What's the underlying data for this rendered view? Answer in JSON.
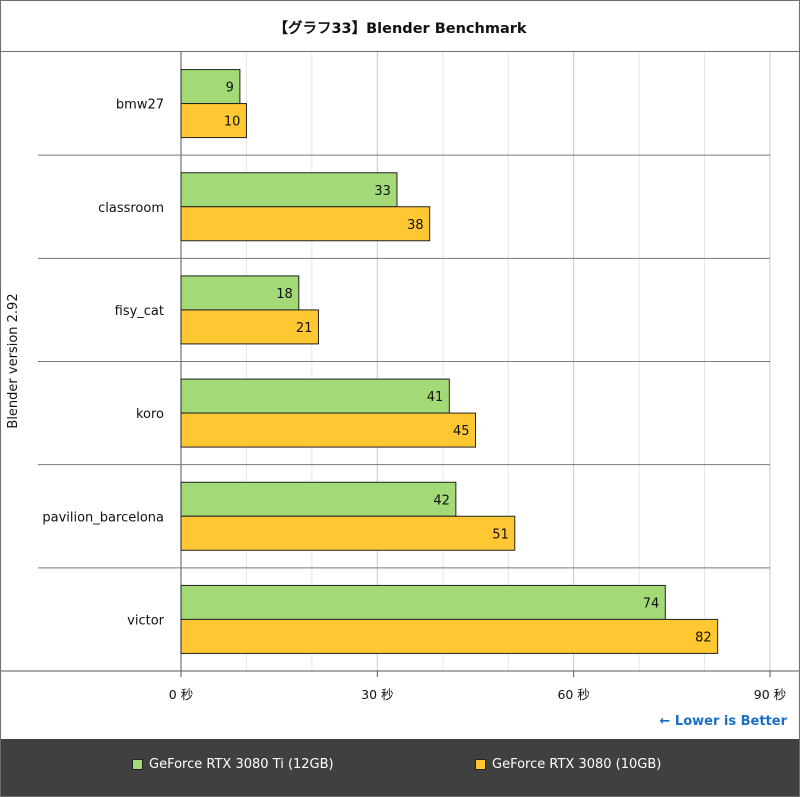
{
  "chart_data": {
    "type": "bar",
    "orientation": "horizontal",
    "title": "【グラフ33】Blender Benchmark",
    "ylabel": "Blender version 2.92",
    "categories": [
      "bmw27",
      "classroom",
      "fisy_cat",
      "koro",
      "pavilion_barcelona",
      "victor"
    ],
    "series": [
      {
        "name": "GeForce RTX 3080 Ti (12GB)",
        "color": "#a3d977",
        "values": [
          9,
          33,
          18,
          41,
          42,
          74
        ]
      },
      {
        "name": "GeForce RTX 3080 (10GB)",
        "color": "#ffc832",
        "values": [
          10,
          38,
          21,
          45,
          51,
          82
        ]
      }
    ],
    "xlim": [
      0,
      90
    ],
    "xticks": [
      0,
      30,
      60,
      90
    ],
    "xtick_labels": [
      "0 秒",
      "30 秒",
      "60 秒",
      "90 秒"
    ],
    "annotation": "← Lower is Better",
    "annotation_color": "#1a6fc4",
    "grid": true,
    "legend_position": "bottom"
  }
}
